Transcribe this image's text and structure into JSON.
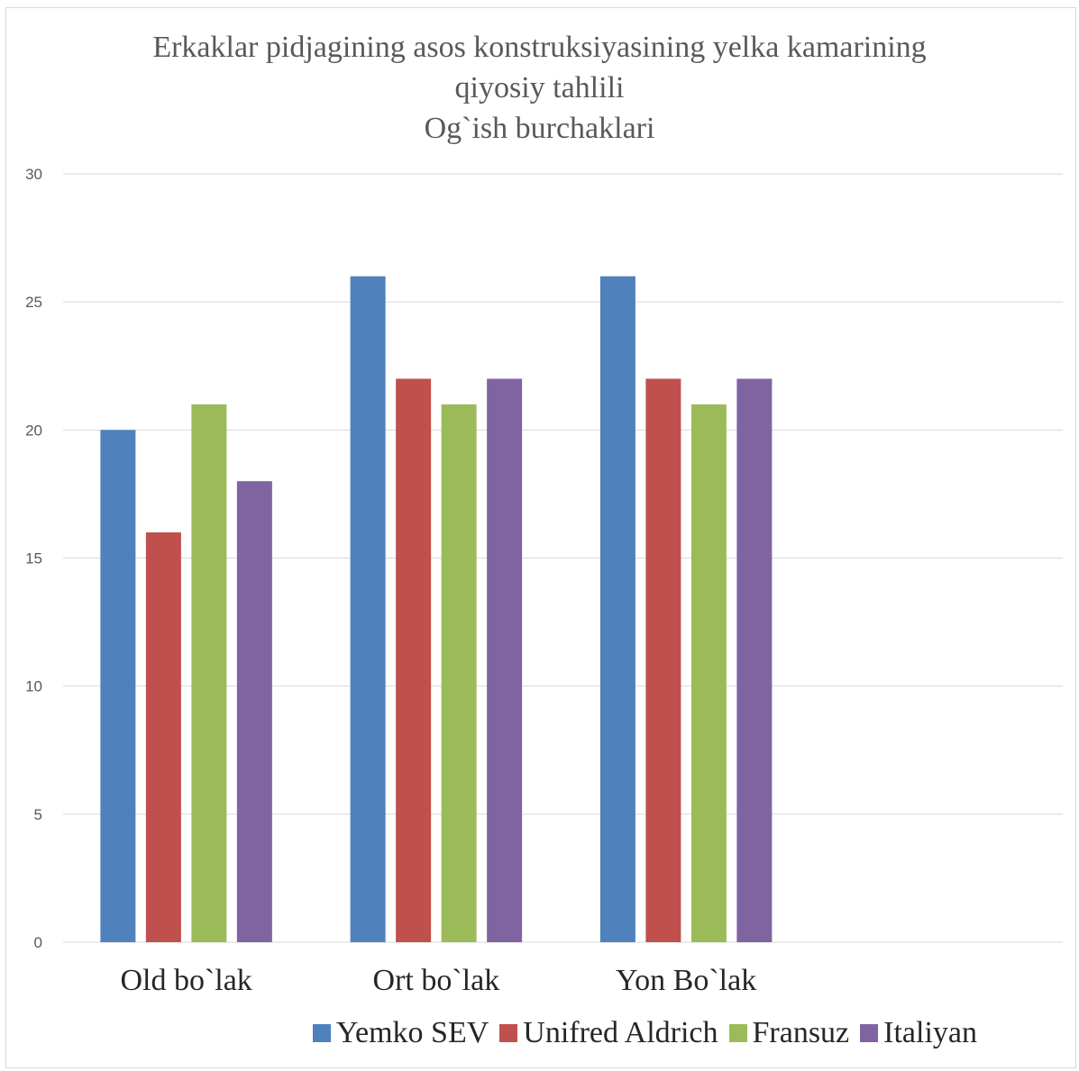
{
  "chart_data": {
    "type": "bar",
    "title_lines": [
      "Erkaklar pidjagining asos konstruksiyasining yelka kamarining",
      "qiyosiy tahlili",
      "Og`ish burchaklari"
    ],
    "categories": [
      "Old bo`lak",
      "Ort bo`lak",
      "Yon Bo`lak"
    ],
    "series": [
      {
        "name": "Yemko SEV",
        "color": "#4f81bd",
        "values": [
          20,
          26,
          26
        ]
      },
      {
        "name": "Unifred Aldrich",
        "color": "#c0504d",
        "values": [
          16,
          22,
          22
        ]
      },
      {
        "name": "Fransuz",
        "color": "#9bbb59",
        "values": [
          21,
          21,
          21
        ]
      },
      {
        "name": "Italiyan",
        "color": "#8064a2",
        "values": [
          18,
          22,
          22
        ]
      }
    ],
    "yticks": [
      0,
      5,
      10,
      15,
      20,
      25,
      30
    ],
    "ylim": [
      0,
      30
    ],
    "xlabel": "",
    "ylabel": "",
    "grid": true,
    "legend_position": "bottom"
  }
}
